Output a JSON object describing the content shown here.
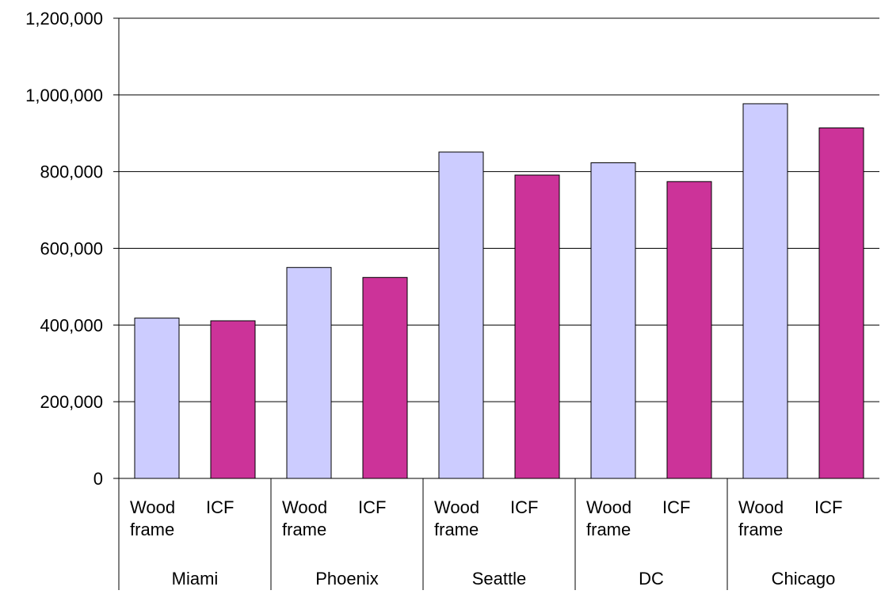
{
  "chart_data": {
    "type": "bar",
    "title": "",
    "xlabel": "",
    "ylabel": "",
    "ylim": [
      0,
      1200000
    ],
    "yticks": [
      0,
      200000,
      400000,
      600000,
      800000,
      1000000,
      1200000
    ],
    "ytick_labels": [
      "0",
      "200,000",
      "400,000",
      "600,000",
      "800,000",
      "1,000,000",
      "1,200,000"
    ],
    "grid": true,
    "legend": "none",
    "groups": [
      "Miami",
      "Phoenix",
      "Seattle",
      "DC",
      "Chicago"
    ],
    "subcategories": [
      {
        "lines": [
          "Wood",
          "frame"
        ]
      },
      {
        "lines": [
          "ICF"
        ]
      }
    ],
    "series": [
      {
        "color": "#ccccff",
        "values": [
          418000,
          550000,
          851000,
          823000,
          977000
        ]
      },
      {
        "color": "#cc3399",
        "values": [
          411000,
          524000,
          791000,
          774000,
          914000
        ]
      }
    ]
  }
}
